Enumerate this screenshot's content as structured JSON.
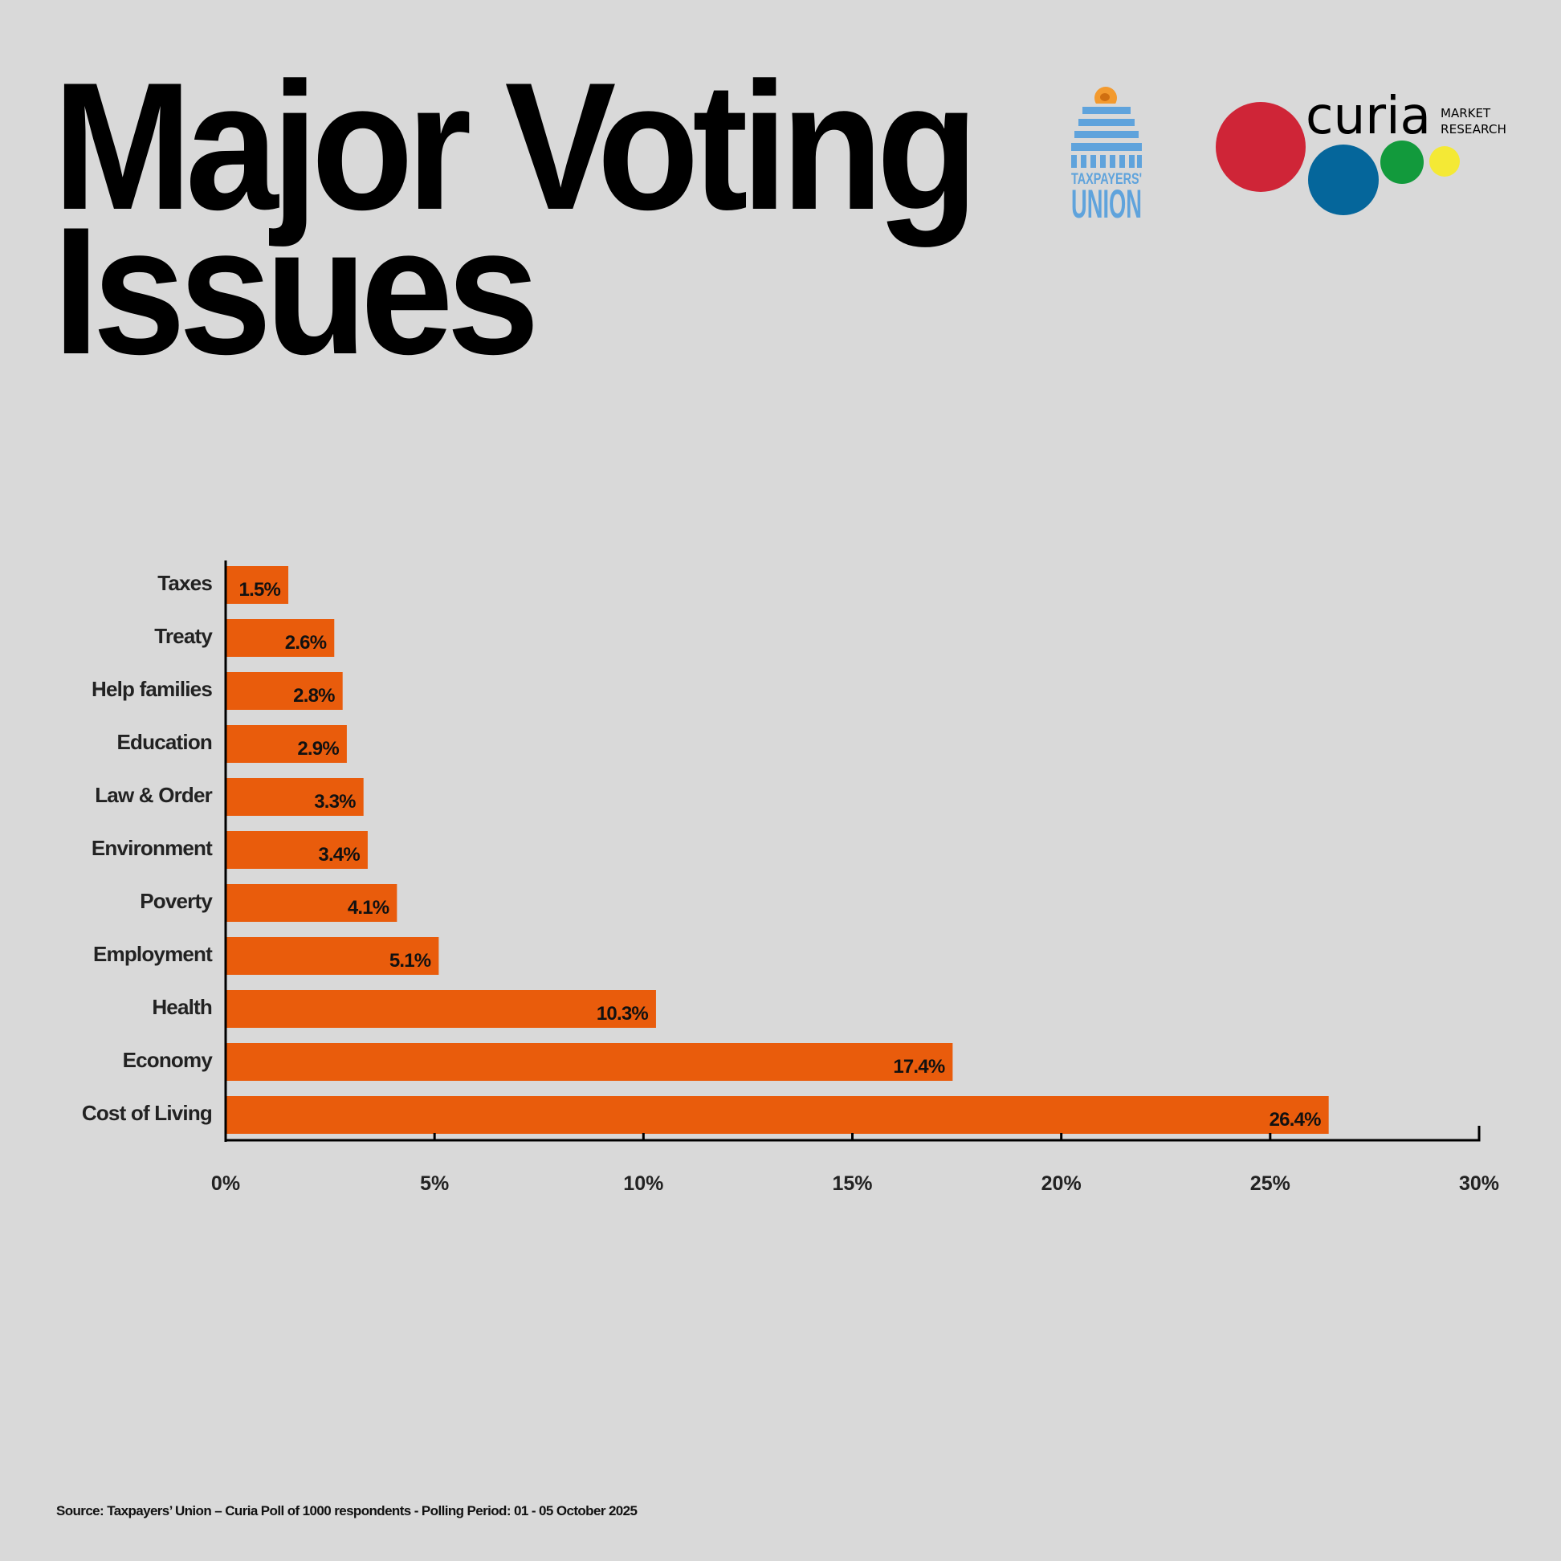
{
  "header": {
    "title_line1": "Major Voting",
    "title_line2": "Issues"
  },
  "logos": {
    "taxpayers_union": {
      "line1": "TAXPAYERS'",
      "line2": "UNION",
      "color": "#5fa3dc",
      "accent": "#f39a2e"
    },
    "curia": {
      "name": "curia",
      "tag1": "MARKET",
      "tag2": "RESEARCH",
      "circle_colors": [
        "#cf2537",
        "#05669b",
        "#129a3c",
        "#f4e935"
      ]
    }
  },
  "chart_data": {
    "type": "bar",
    "orientation": "horizontal",
    "title": "Major Voting Issues",
    "categories": [
      "Taxes",
      "Treaty",
      "Help families",
      "Education",
      "Law & Order",
      "Environment",
      "Poverty",
      "Employment",
      "Health",
      "Economy",
      "Cost of Living"
    ],
    "values": [
      1.5,
      2.6,
      2.8,
      2.9,
      3.3,
      3.4,
      4.1,
      5.1,
      10.3,
      17.4,
      26.4
    ],
    "value_labels": [
      "1.5%",
      "2.6%",
      "2.8%",
      "2.9%",
      "3.3%",
      "3.4%",
      "4.1%",
      "5.1%",
      "10.3%",
      "17.4%",
      "26.4%"
    ],
    "xlim": [
      0,
      30
    ],
    "xticks": [
      0,
      5,
      10,
      15,
      20,
      25,
      30
    ],
    "xtick_labels": [
      "0%",
      "5%",
      "10%",
      "15%",
      "20%",
      "25%",
      "30%"
    ],
    "xlabel": "",
    "ylabel": "",
    "grid": false,
    "legend": null,
    "bar_color": "#e95c0c"
  },
  "footer": {
    "source": "Source: Taxpayers’ Union – Curia Poll of 1000 respondents -  Polling Period: 01 - 05 October 2025"
  }
}
